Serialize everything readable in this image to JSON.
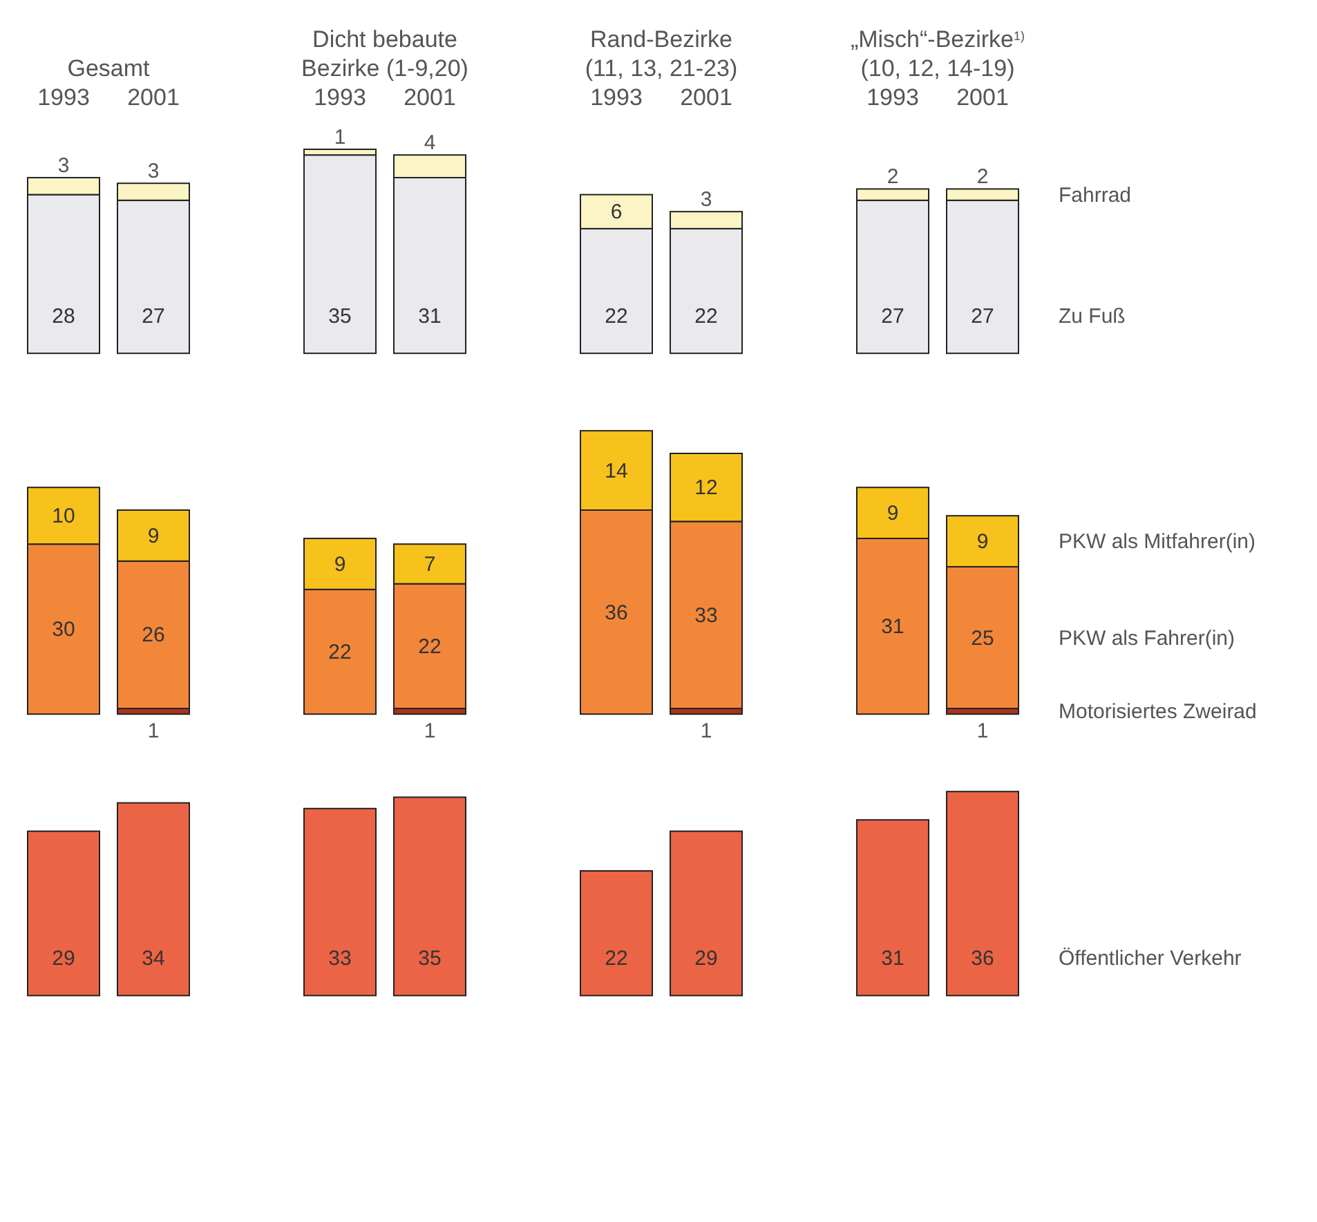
{
  "chart_data": [
    {
      "type": "bar",
      "stacked": true,
      "data_labels": true,
      "categories": [
        "1993",
        "2001",
        "1993",
        "2001",
        "1993",
        "2001",
        "1993",
        "2001"
      ],
      "annotations": [
        "Gesamt",
        "Dicht bebaute\nBezirke (1-9,20)",
        "Rand-Bezirke\n(11, 13, 21-23)",
        "„Misch“-Bezirke$^{1)}$\n(10, 12, 14-19)"
      ],
      "series": [
        {
          "name": "Zu Fuß",
          "color": "#e9e9ee",
          "values": [
            28,
            27,
            35,
            31,
            22,
            22,
            27,
            27
          ]
        },
        {
          "name": "Fahrrad",
          "color": "#fbf4c4",
          "values": [
            3,
            3,
            1,
            4,
            6,
            3,
            2,
            2
          ]
        }
      ]
    },
    {
      "type": "bar",
      "stacked": true,
      "data_labels": true,
      "categories": [
        null,
        null,
        null,
        null,
        null,
        null,
        null,
        null
      ],
      "series": [
        {
          "name": "Motorisiertes Zweirad",
          "color": "#a8321c",
          "values": [
            null,
            1,
            null,
            1,
            null,
            1,
            null,
            1
          ]
        },
        {
          "name": "PKW als Fahrer(in)",
          "color": "#f2873a",
          "values": [
            30,
            26,
            22,
            22,
            36,
            33,
            31,
            25
          ]
        },
        {
          "name": "PKW als Mitfahrer(in)",
          "color": "#f8c21c",
          "values": [
            10,
            9,
            9,
            7,
            14,
            12,
            9,
            9
          ]
        }
      ]
    },
    {
      "type": "bar",
      "stacked": true,
      "data_labels": true,
      "categories": [
        null,
        null,
        null,
        null,
        null,
        null,
        null,
        null
      ],
      "series": [
        {
          "name": "Öffentlicher Verkehr",
          "color": "#ec6446",
          "values": [
            29,
            34,
            33,
            35,
            22,
            29,
            31,
            36
          ]
        }
      ]
    }
  ]
}
